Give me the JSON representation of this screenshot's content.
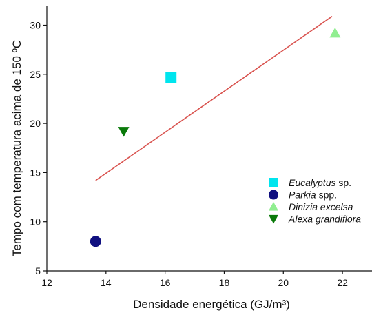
{
  "chart_data": {
    "type": "scatter",
    "xlabel": "Densidade energética (GJ/m³)",
    "ylabel": "Tempo com temperatura acima de 150 ºC",
    "xlim": [
      12,
      23
    ],
    "ylim": [
      5,
      32
    ],
    "x_ticks": [
      12,
      14,
      16,
      18,
      20,
      22
    ],
    "y_ticks": [
      5,
      10,
      15,
      20,
      25,
      30
    ],
    "grid": false,
    "legend_position": "right",
    "series": [
      {
        "name": "Eucalyptus",
        "name_suffix": " sp.",
        "marker": "square",
        "color": "#00e5ee",
        "x": [
          16.2
        ],
        "y": [
          24.7
        ]
      },
      {
        "name": "Parkia",
        "name_suffix": " spp.",
        "marker": "circle",
        "color": "#101080",
        "x": [
          13.65
        ],
        "y": [
          8.0
        ]
      },
      {
        "name": "Dinizia excelsa",
        "name_suffix": "",
        "marker": "triangle-up",
        "color": "#90ee90",
        "x": [
          21.75
        ],
        "y": [
          29.2
        ]
      },
      {
        "name": "Alexa grandiflora",
        "name_suffix": "",
        "marker": "triangle-down",
        "color": "#0a7a0a",
        "x": [
          14.6
        ],
        "y": [
          19.2
        ]
      }
    ],
    "trendline": {
      "color": "#d9534f",
      "x": [
        13.65,
        21.65
      ],
      "y": [
        14.2,
        30.9
      ]
    }
  }
}
